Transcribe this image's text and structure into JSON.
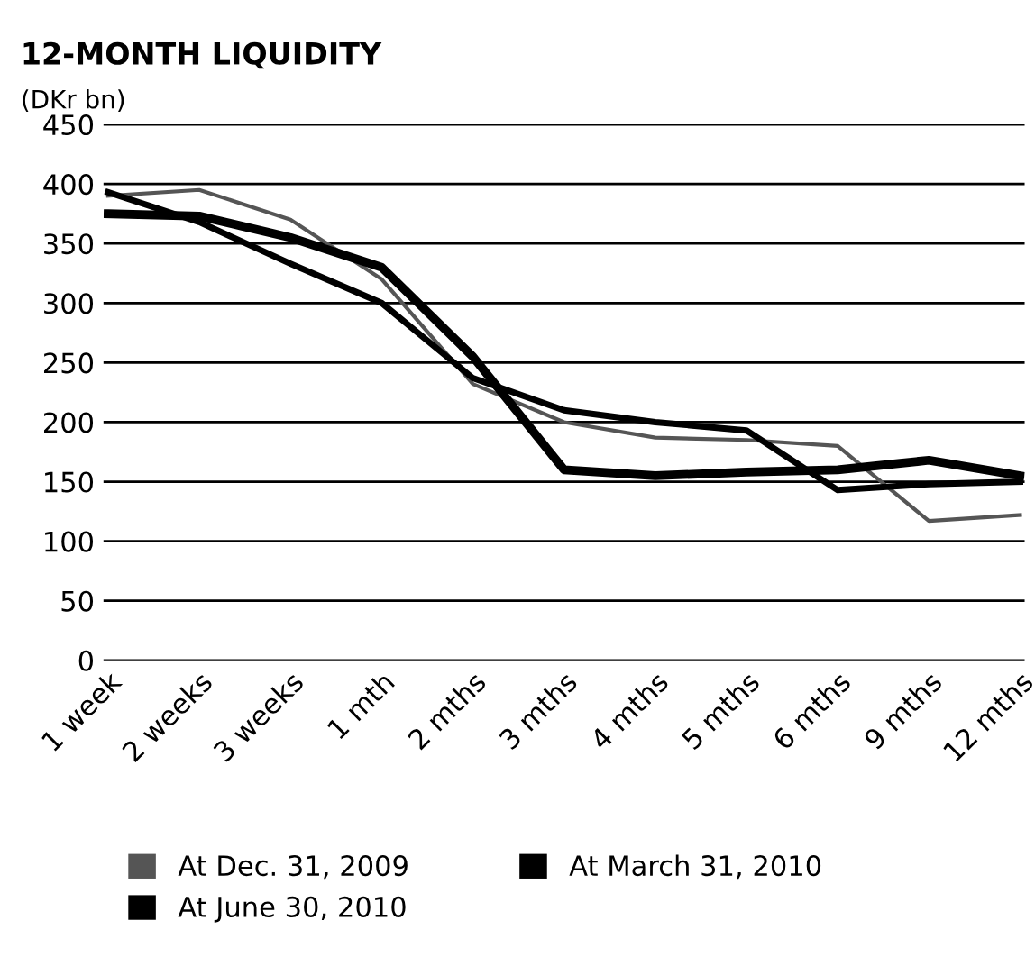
{
  "chart_data": {
    "type": "line",
    "title": "12-MONTH LIQUIDITY",
    "ylabel": "(DKr bn)",
    "categories": [
      "1 week",
      "2 weeks",
      "3 weeks",
      "1 mth",
      "2 mths",
      "3 mths",
      "4 mths",
      "5 mths",
      "6 mths",
      "9 mths",
      "12 mths"
    ],
    "series": [
      {
        "name": "At Dec. 31, 2009",
        "color": "#555555",
        "values": [
          390,
          395,
          370,
          320,
          232,
          200,
          187,
          185,
          180,
          117,
          122
        ]
      },
      {
        "name": "At March 31, 2010",
        "color": "#000000",
        "values": [
          393,
          368,
          333,
          300,
          237,
          210,
          200,
          193,
          143,
          148,
          150
        ]
      },
      {
        "name": "At June 30, 2010",
        "color": "#000000",
        "values": [
          375,
          373,
          355,
          330,
          255,
          160,
          155,
          158,
          160,
          168,
          155
        ]
      }
    ],
    "ylim": [
      0,
      450
    ],
    "yticks": [
      0,
      50,
      100,
      150,
      200,
      250,
      300,
      350,
      400,
      450
    ],
    "grid": "y",
    "legend": "bottom",
    "marker": "none",
    "line_style": "solid"
  }
}
